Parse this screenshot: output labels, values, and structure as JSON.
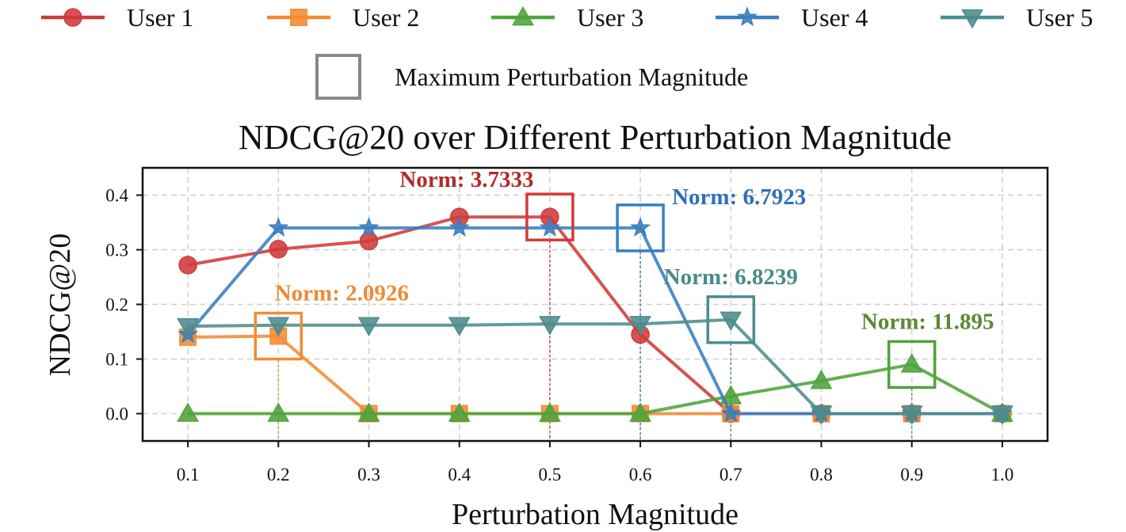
{
  "chart_data": {
    "type": "line",
    "title": "NDCG@20 over Different Perturbation Magnitude",
    "xlabel": "Perturbation Magnitude",
    "ylabel": "NDCG@20",
    "x": [
      0.1,
      0.2,
      0.3,
      0.4,
      0.5,
      0.6,
      0.7,
      0.8,
      0.9,
      1.0
    ],
    "x_tick_labels": [
      "0.1",
      "0.2",
      "0.3",
      "0.4",
      "0.5",
      "0.6",
      "0.7",
      "0.8",
      "0.9",
      "1.0"
    ],
    "y_ticks": [
      0.0,
      0.1,
      0.2,
      0.3,
      0.4
    ],
    "y_tick_labels": [
      "0.0",
      "0.1",
      "0.2",
      "0.3",
      "0.4"
    ],
    "xlim": [
      0.05,
      1.05
    ],
    "ylim": [
      -0.05,
      0.45
    ],
    "grid": true,
    "legend_position": "top",
    "series": [
      {
        "name": "User 1",
        "color": "#d03a3a",
        "marker": "circle",
        "values": [
          0.272,
          0.301,
          0.316,
          0.36,
          0.36,
          0.145,
          0.0,
          0.0,
          0.0,
          0.0
        ]
      },
      {
        "name": "User 2",
        "color": "#f28b32",
        "marker": "square",
        "values": [
          0.14,
          0.142,
          0.0,
          0.0,
          0.0,
          0.0,
          0.0,
          0.0,
          0.0,
          0.0
        ]
      },
      {
        "name": "User 3",
        "color": "#4fa33b",
        "marker": "triangle-up",
        "values": [
          0.0,
          0.0,
          0.0,
          0.0,
          0.0,
          0.0,
          0.032,
          0.06,
          0.09,
          0.0
        ]
      },
      {
        "name": "User 4",
        "color": "#3a7ebf",
        "marker": "star",
        "values": [
          0.145,
          0.34,
          0.34,
          0.34,
          0.34,
          0.34,
          0.0,
          0.0,
          0.0,
          0.0
        ]
      },
      {
        "name": "User 5",
        "color": "#4c8c8c",
        "marker": "triangle-down",
        "values": [
          0.16,
          0.162,
          0.162,
          0.162,
          0.164,
          0.164,
          0.172,
          0.0,
          0.0,
          0.0
        ]
      }
    ],
    "max_legend_label": "Maximum Perturbation Magnitude",
    "annotations": [
      {
        "series": "User 1",
        "x": 0.5,
        "y": 0.36,
        "text": "Norm: 3.7333",
        "color": "#b22a2a"
      },
      {
        "series": "User 2",
        "x": 0.2,
        "y": 0.142,
        "text": "Norm: 2.0926",
        "color": "#ee8a36"
      },
      {
        "series": "User 3",
        "x": 0.9,
        "y": 0.09,
        "text": "Norm: 11.895",
        "color": "#5a8a34"
      },
      {
        "series": "User 4",
        "x": 0.6,
        "y": 0.34,
        "text": "Norm: 6.7923",
        "color": "#2f6fb8"
      },
      {
        "series": "User 5",
        "x": 0.7,
        "y": 0.172,
        "text": "Norm: 6.8239",
        "color": "#4a8a8a"
      }
    ]
  }
}
